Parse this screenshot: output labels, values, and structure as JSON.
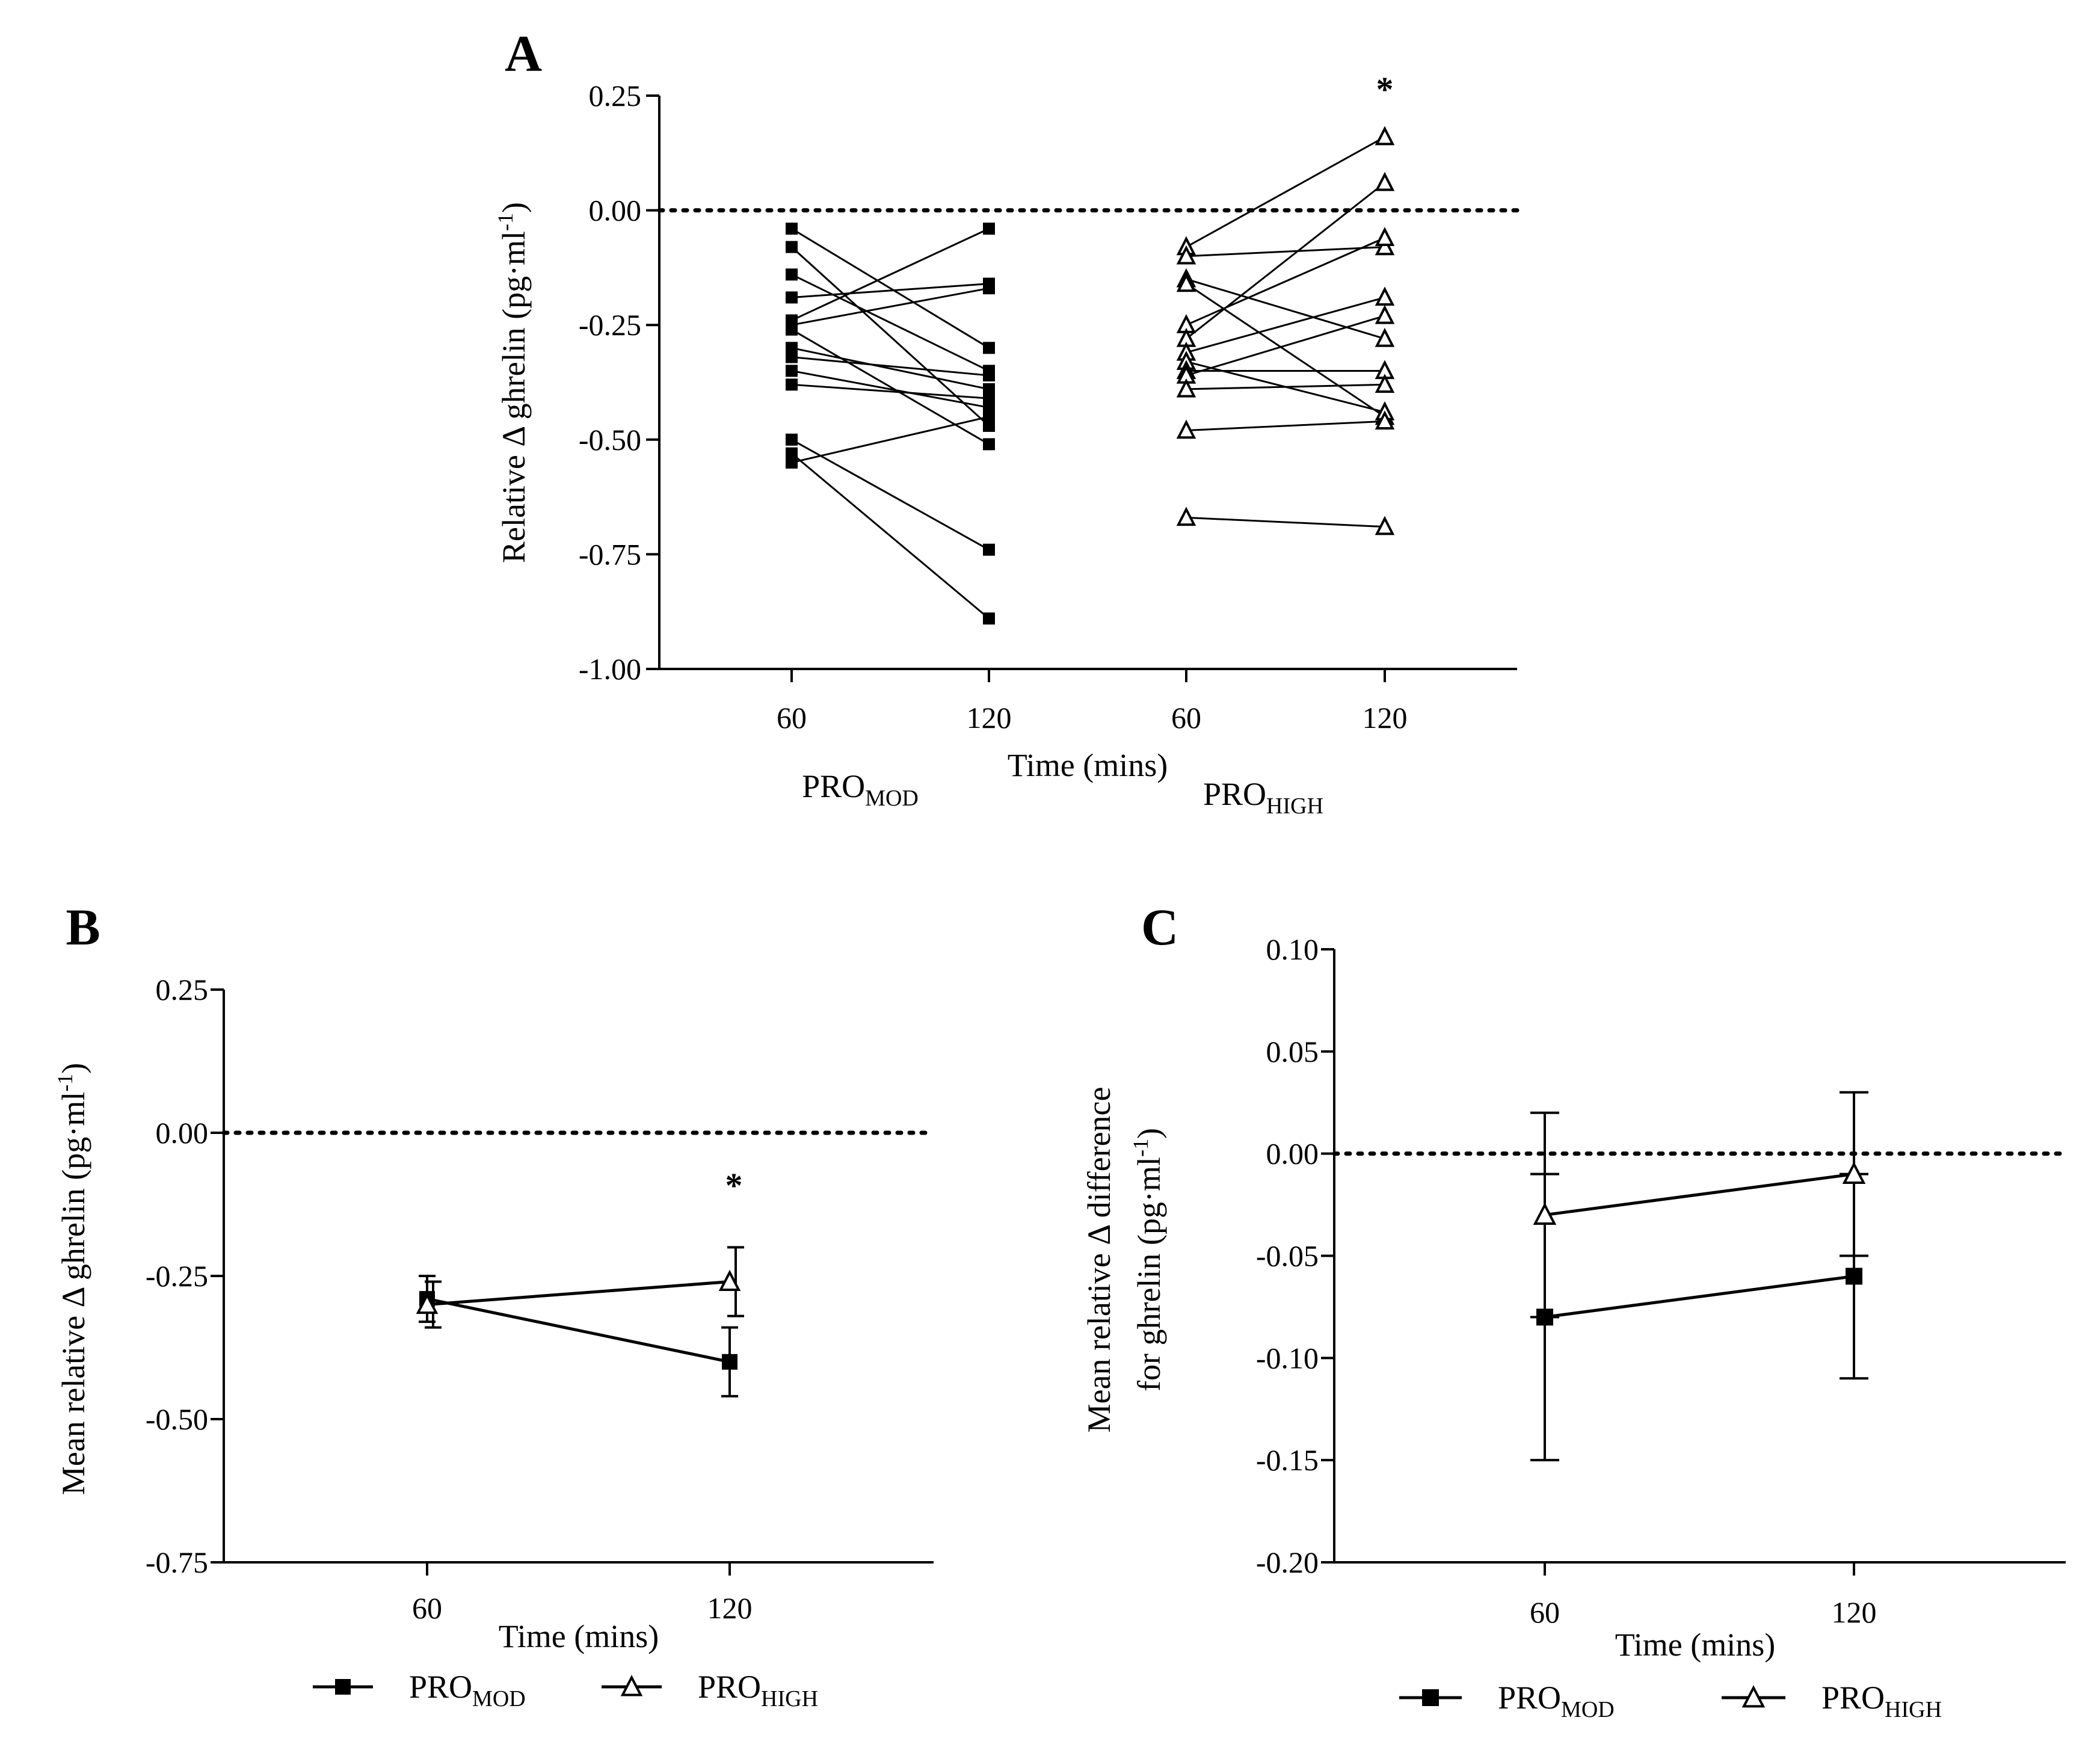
{
  "chart_data": [
    {
      "panel": "A",
      "type": "scatter",
      "ylabel": "Relative Δ ghrelin (pg·ml-1)",
      "xlabel": "Time (mins)",
      "ylim": [
        -1.0,
        0.25
      ],
      "yticks": [
        "0.25",
        "0.00",
        "-0.25",
        "-0.50",
        "-0.75",
        "-1.00"
      ],
      "yticks_values": [
        0.25,
        0.0,
        -0.25,
        -0.5,
        -0.75,
        -1.0
      ],
      "xticks": [
        "60",
        "120",
        "60",
        "120"
      ],
      "reference_line": 0.0,
      "annotation": "*",
      "groups": [
        {
          "name_main": "PRO",
          "name_sub": "MOD",
          "marker": "filled-square",
          "pairs": [
            [
              -0.04,
              -0.3
            ],
            [
              -0.08,
              -0.47
            ],
            [
              -0.14,
              -0.35
            ],
            [
              -0.19,
              -0.16
            ],
            [
              -0.24,
              -0.04
            ],
            [
              -0.25,
              -0.17
            ],
            [
              -0.26,
              -0.51
            ],
            [
              -0.3,
              -0.39
            ],
            [
              -0.32,
              -0.36
            ],
            [
              -0.35,
              -0.43
            ],
            [
              -0.38,
              -0.41
            ],
            [
              -0.5,
              -0.74
            ],
            [
              -0.53,
              -0.89
            ],
            [
              -0.55,
              -0.45
            ]
          ]
        },
        {
          "name_main": "PRO",
          "name_sub": "HIGH",
          "marker": "open-triangle",
          "pairs": [
            [
              -0.08,
              0.16
            ],
            [
              -0.1,
              -0.08
            ],
            [
              -0.15,
              -0.28
            ],
            [
              -0.16,
              -0.45
            ],
            [
              -0.25,
              -0.06
            ],
            [
              -0.28,
              0.06
            ],
            [
              -0.31,
              -0.19
            ],
            [
              -0.33,
              -0.44
            ],
            [
              -0.35,
              -0.35
            ],
            [
              -0.36,
              -0.23
            ],
            [
              -0.39,
              -0.38
            ],
            [
              -0.48,
              -0.46
            ],
            [
              -0.67,
              -0.69
            ]
          ]
        }
      ]
    },
    {
      "panel": "B",
      "type": "line",
      "ylabel": "Mean relative Δ ghrelin (pg·ml-1)",
      "xlabel": "Time (mins)",
      "categories": [
        "60",
        "120"
      ],
      "ylim": [
        -0.75,
        0.25
      ],
      "yticks": [
        "0.25",
        "0.00",
        "-0.25",
        "-0.50",
        "-0.75"
      ],
      "yticks_values": [
        0.25,
        0.0,
        -0.25,
        -0.5,
        -0.75
      ],
      "reference_line": 0.0,
      "annotation": "*",
      "series": [
        {
          "name_main": "PRO",
          "name_sub": "MOD",
          "marker": "filled-square",
          "values": [
            -0.29,
            -0.4
          ],
          "err_low": [
            -0.33,
            -0.46
          ],
          "err_high": [
            -0.25,
            -0.34
          ]
        },
        {
          "name_main": "PRO",
          "name_sub": "HIGH",
          "marker": "open-triangle",
          "values": [
            -0.3,
            -0.26
          ],
          "err_low": [
            -0.34,
            -0.32
          ],
          "err_high": [
            -0.26,
            -0.2
          ]
        }
      ]
    },
    {
      "panel": "C",
      "type": "line",
      "ylabel_line1": "Mean relative Δ difference",
      "ylabel_line2": "for ghrelin (pg·ml-1)",
      "xlabel": "Time (mins)",
      "categories": [
        "60",
        "120"
      ],
      "ylim": [
        -0.2,
        0.1
      ],
      "yticks": [
        "0.10",
        "0.05",
        "0.00",
        "-0.05",
        "-0.10",
        "-0.15",
        "-0.20"
      ],
      "yticks_values": [
        0.1,
        0.05,
        0.0,
        -0.05,
        -0.1,
        -0.15,
        -0.2
      ],
      "reference_line": 0.0,
      "series": [
        {
          "name_main": "PRO",
          "name_sub": "MOD",
          "marker": "filled-square",
          "values": [
            -0.08,
            -0.06
          ],
          "err_low": [
            -0.15,
            -0.11
          ],
          "err_high": [
            -0.01,
            -0.01
          ]
        },
        {
          "name_main": "PRO",
          "name_sub": "HIGH",
          "marker": "open-triangle",
          "values": [
            -0.03,
            -0.01
          ],
          "err_low": [
            -0.08,
            -0.05
          ],
          "err_high": [
            0.02,
            0.03
          ]
        }
      ]
    }
  ]
}
